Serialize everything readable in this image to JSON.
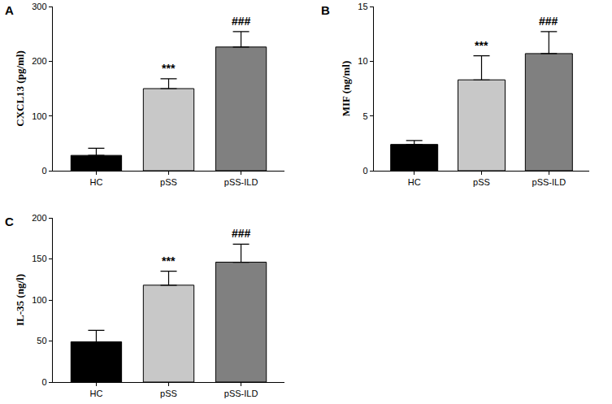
{
  "chart_data": [
    {
      "type": "bar",
      "title": "A",
      "ylabel": "CXCL13 (pg/ml)",
      "categories": [
        "HC",
        "pSS",
        "pSS-ILD"
      ],
      "values": [
        28,
        150,
        226
      ],
      "errors": [
        13,
        18,
        28
      ],
      "colors": [
        "#000000",
        "#c8c8c8",
        "#808080"
      ],
      "ylim": [
        0,
        300
      ],
      "yticks": [
        0,
        100,
        200,
        300
      ],
      "grid": false,
      "annotations": [
        {
          "category": "pSS",
          "text": "***"
        },
        {
          "category": "pSS-ILD",
          "text": "###"
        }
      ]
    },
    {
      "type": "bar",
      "title": "B",
      "ylabel": "MIF (ng/ml)",
      "categories": [
        "HC",
        "pSS",
        "pSS-ILD"
      ],
      "values": [
        2.4,
        8.3,
        10.7
      ],
      "errors": [
        0.35,
        2.2,
        2.0
      ],
      "colors": [
        "#000000",
        "#c8c8c8",
        "#808080"
      ],
      "ylim": [
        0,
        15
      ],
      "yticks": [
        0,
        5,
        10,
        15
      ],
      "grid": false,
      "annotations": [
        {
          "category": "pSS",
          "text": "***"
        },
        {
          "category": "pSS-ILD",
          "text": "###"
        }
      ]
    },
    {
      "type": "bar",
      "title": "C",
      "ylabel": "IL-35 (ng/l)",
      "categories": [
        "HC",
        "pSS",
        "pSS-ILD"
      ],
      "values": [
        49,
        118,
        146
      ],
      "errors": [
        14,
        17,
        22
      ],
      "colors": [
        "#000000",
        "#c8c8c8",
        "#808080"
      ],
      "ylim": [
        0,
        200
      ],
      "yticks": [
        0,
        50,
        100,
        150,
        200
      ],
      "grid": false,
      "annotations": [
        {
          "category": "pSS",
          "text": "***"
        },
        {
          "category": "pSS-ILD",
          "text": "###"
        }
      ]
    }
  ]
}
